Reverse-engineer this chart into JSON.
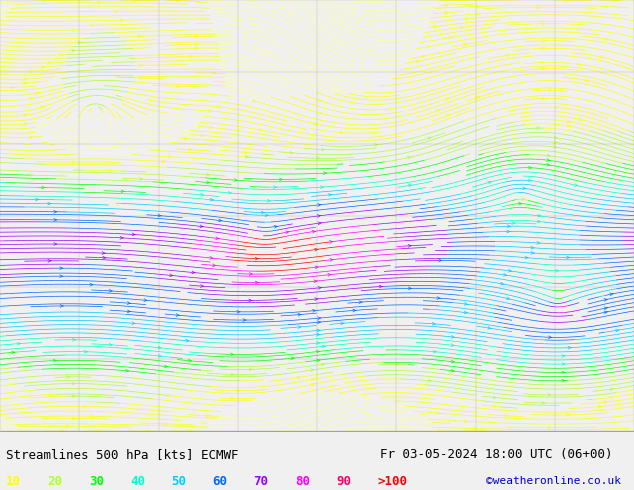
{
  "title_line1": "Streamlines 500 hPa [kts] ECMWF",
  "title_line2": "Fr 03-05-2024 18:00 UTC (06+00)",
  "credit": "©weatheronline.co.uk",
  "legend_labels": [
    "10",
    "20",
    "30",
    "40",
    "50",
    "60",
    "70",
    "80",
    "90",
    ">100"
  ],
  "legend_colors": [
    "#ffff00",
    "#adff2f",
    "#00ff00",
    "#00ffcc",
    "#00ccff",
    "#0066ff",
    "#9900ff",
    "#ff00ff",
    "#ff0066",
    "#ff0000"
  ],
  "bg_color": "#f0f0f0",
  "map_bg": "#ffffff",
  "title_color": "#000000",
  "title_fontsize": 9,
  "legend_fontsize": 9,
  "credit_color": "#0000cc",
  "credit_fontsize": 8,
  "fig_width": 6.34,
  "fig_height": 4.9,
  "dpi": 100,
  "bottom_bar_color": "#f0f0f0",
  "bottom_bar_height": 0.12
}
